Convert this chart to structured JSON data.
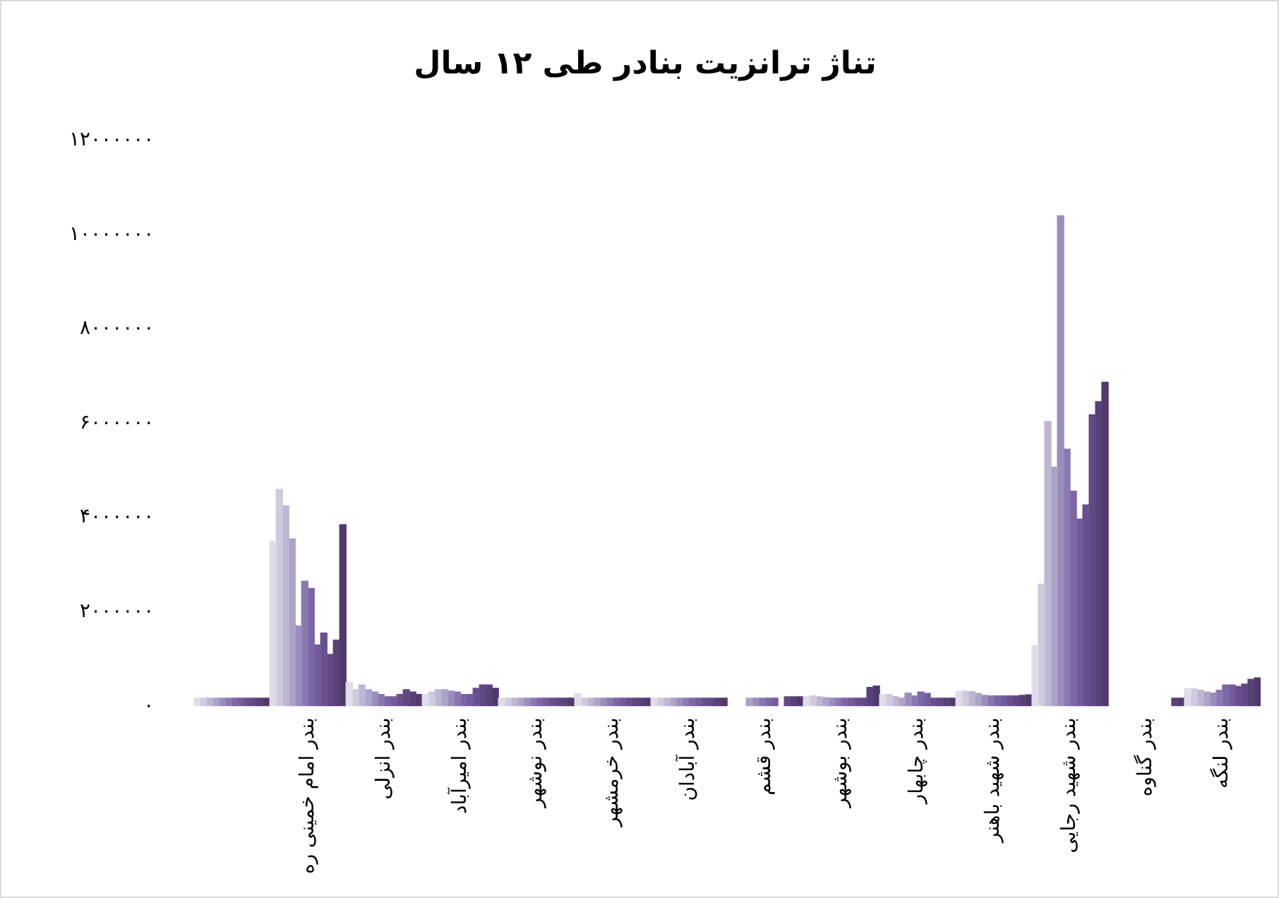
{
  "chart_data": {
    "type": "bar",
    "title": "تناژ ترانزیت بنادر طی ۱۲ سال",
    "categories": [
      null,
      "بندر امام خمینی ره",
      "بندر انزلی",
      "بندر امیرآباد",
      "بندر نوشهر",
      "بندر خرمشهر",
      "بندر آبادان",
      "بندر قشم",
      "بندر بوشهر",
      "بندر چابهار",
      "بندر شهید باهنر",
      "بندر شهید رجایی",
      "بندر گناوه",
      "بندر لنگه"
    ],
    "series": [
      {
        "color": "#e0dce8",
        "values": [
          170000,
          3500000,
          500000,
          250000,
          170000,
          270000,
          170000,
          null,
          200000,
          250000,
          310000,
          1290000,
          null,
          370000
        ]
      },
      {
        "color": "#d0cadf",
        "values": [
          170000,
          4600000,
          350000,
          300000,
          170000,
          170000,
          170000,
          null,
          220000,
          250000,
          320000,
          2590000,
          null,
          370000
        ]
      },
      {
        "color": "#bfb6d3",
        "values": [
          170000,
          4250000,
          450000,
          350000,
          170000,
          170000,
          170000,
          null,
          200000,
          200000,
          310000,
          6040000,
          null,
          340000
        ]
      },
      {
        "color": "#ada2c7",
        "values": [
          170000,
          3550000,
          350000,
          350000,
          170000,
          170000,
          170000,
          170000,
          180000,
          170000,
          270000,
          5070000,
          null,
          300000
        ]
      },
      {
        "color": "#9b8dbb",
        "values": [
          170000,
          1700000,
          300000,
          320000,
          170000,
          170000,
          170000,
          170000,
          170000,
          280000,
          230000,
          10400000,
          null,
          280000
        ]
      },
      {
        "color": "#8a78b0",
        "values": [
          170000,
          2650000,
          250000,
          300000,
          170000,
          170000,
          170000,
          170000,
          170000,
          220000,
          220000,
          5450000,
          null,
          340000
        ]
      },
      {
        "color": "#7c66a6",
        "values": [
          170000,
          2500000,
          200000,
          250000,
          170000,
          170000,
          170000,
          170000,
          170000,
          300000,
          220000,
          4560000,
          null,
          450000
        ]
      },
      {
        "color": "#735b9c",
        "values": [
          170000,
          1300000,
          200000,
          250000,
          170000,
          170000,
          170000,
          170000,
          170000,
          270000,
          220000,
          3970000,
          null,
          450000
        ]
      },
      {
        "color": "#694f90",
        "values": [
          170000,
          1550000,
          250000,
          380000,
          170000,
          170000,
          170000,
          null,
          170000,
          170000,
          220000,
          4270000,
          null,
          420000
        ]
      },
      {
        "color": "#614884",
        "values": [
          170000,
          1100000,
          350000,
          450000,
          170000,
          170000,
          170000,
          200000,
          170000,
          170000,
          220000,
          6180000,
          null,
          470000
        ]
      },
      {
        "color": "#584177",
        "values": [
          170000,
          1400000,
          300000,
          450000,
          170000,
          170000,
          170000,
          200000,
          400000,
          170000,
          230000,
          6460000,
          170000,
          570000
        ]
      },
      {
        "color": "#4f3a6b",
        "values": [
          170000,
          3850000,
          250000,
          380000,
          170000,
          170000,
          170000,
          200000,
          430000,
          170000,
          240000,
          6870000,
          170000,
          600000
        ]
      }
    ],
    "ylim": [
      0,
      12000000
    ],
    "yticks": [
      {
        "value": 0,
        "label": "۰"
      },
      {
        "value": 2000000,
        "label": "۲۰۰۰۰۰۰"
      },
      {
        "value": 4000000,
        "label": "۴۰۰۰۰۰۰"
      },
      {
        "value": 6000000,
        "label": "۶۰۰۰۰۰۰"
      },
      {
        "value": 8000000,
        "label": "۸۰۰۰۰۰۰"
      },
      {
        "value": 10000000,
        "label": "۱۰۰۰۰۰۰۰"
      },
      {
        "value": 12000000,
        "label": "۱۲۰۰۰۰۰۰"
      }
    ],
    "grid": false,
    "legend": false
  }
}
